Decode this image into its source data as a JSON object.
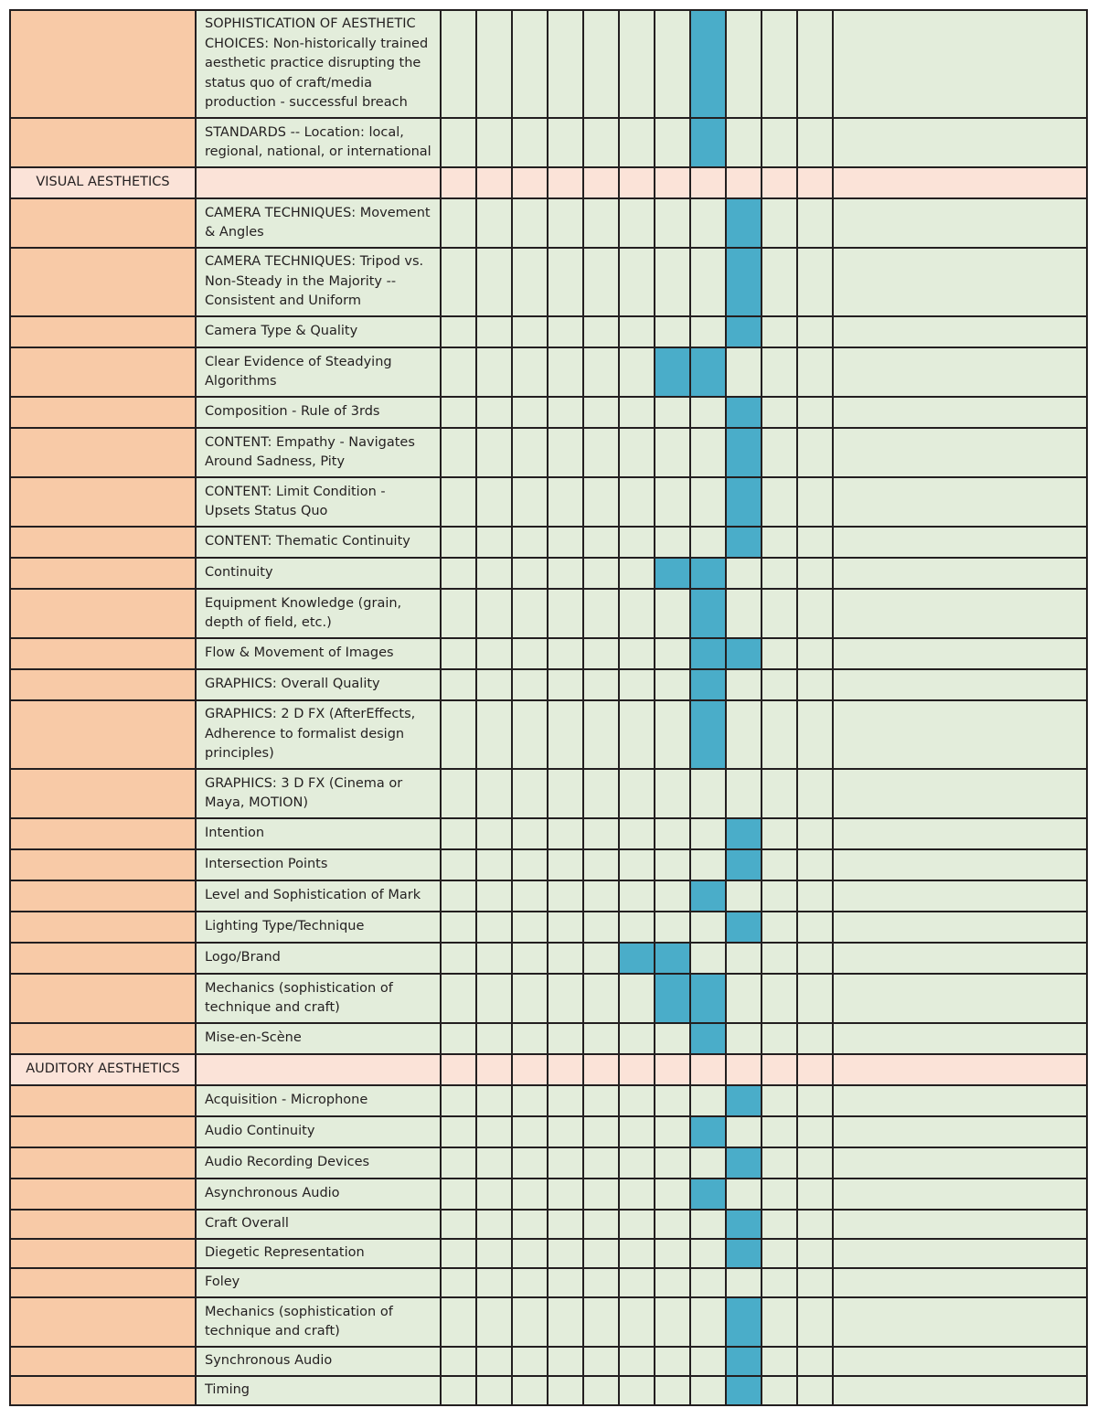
{
  "colors": {
    "category_bg": "#f8caa7",
    "section_bg": "#fbe3d8",
    "cell_bg": "#e3eddb",
    "marked_bg": "#4aadc9",
    "grid_line": "#231f20"
  },
  "scale_columns": 11,
  "rows": [
    {
      "kind": "item",
      "category": "",
      "label": "SOPHISTICATION OF AESTHETIC CHOICES: Non-historically trained aesthetic practice disrupting the status quo of craft/media production - successful breach",
      "marked": [
        7
      ]
    },
    {
      "kind": "item",
      "category": "",
      "label": "STANDARDS -- Location: local, regional, national, or international",
      "marked": [
        7
      ]
    },
    {
      "kind": "section",
      "category": "VISUAL AESTHETICS",
      "label": "",
      "marked": []
    },
    {
      "kind": "item",
      "category": "",
      "label": "CAMERA TECHNIQUES: Movement & Angles",
      "marked": [
        8
      ]
    },
    {
      "kind": "item",
      "category": "",
      "label": "CAMERA TECHNIQUES: Tripod vs. Non-Steady in the Majority -- Consistent and Uniform",
      "marked": [
        8
      ]
    },
    {
      "kind": "item",
      "category": "",
      "label": "Camera Type & Quality",
      "marked": [
        8
      ]
    },
    {
      "kind": "item",
      "category": "",
      "label": "Clear Evidence of Steadying Algorithms",
      "marked": [
        6,
        7
      ]
    },
    {
      "kind": "item",
      "category": "",
      "label": "Composition - Rule of 3rds",
      "marked": [
        8
      ]
    },
    {
      "kind": "item",
      "category": "",
      "label": "CONTENT: Empathy - Navigates Around Sadness, Pity",
      "marked": [
        8
      ]
    },
    {
      "kind": "item",
      "category": "",
      "label": "CONTENT: Limit Condition - Upsets Status Quo",
      "marked": [
        8
      ]
    },
    {
      "kind": "item",
      "category": "",
      "label": "CONTENT: Thematic Continuity",
      "marked": [
        8
      ]
    },
    {
      "kind": "item",
      "category": "",
      "label": "Continuity",
      "marked": [
        6,
        7
      ]
    },
    {
      "kind": "item",
      "category": "",
      "label": "Equipment Knowledge (grain, depth of field, etc.)",
      "marked": [
        7
      ]
    },
    {
      "kind": "item",
      "category": "",
      "label": "Flow & Movement of Images",
      "marked": [
        7,
        8
      ]
    },
    {
      "kind": "item",
      "category": "",
      "label": "GRAPHICS: Overall Quality",
      "marked": [
        7
      ]
    },
    {
      "kind": "item",
      "category": "",
      "label": "GRAPHICS: 2 D FX (AfterEffects, Adherence to formalist design principles)",
      "marked": [
        7
      ]
    },
    {
      "kind": "item",
      "category": "",
      "label": "GRAPHICS: 3 D FX (Cinema or Maya, MOTION)",
      "marked": []
    },
    {
      "kind": "item",
      "category": "",
      "label": "Intention",
      "marked": [
        8
      ]
    },
    {
      "kind": "item",
      "category": "",
      "label": "Intersection Points",
      "marked": [
        8
      ]
    },
    {
      "kind": "item",
      "category": "",
      "label": "Level and Sophistication of Mark",
      "marked": [
        7
      ]
    },
    {
      "kind": "item",
      "category": "",
      "label": "Lighting Type/Technique",
      "marked": [
        8
      ]
    },
    {
      "kind": "item",
      "category": "",
      "label": "Logo/Brand",
      "marked": [
        5,
        6
      ]
    },
    {
      "kind": "item",
      "category": "",
      "label": "Mechanics (sophistication of technique and craft)",
      "marked": [
        6,
        7
      ]
    },
    {
      "kind": "item",
      "category": "",
      "label": "Mise-en-Scène",
      "marked": [
        7
      ]
    },
    {
      "kind": "section",
      "category": "AUDITORY AESTHETICS",
      "label": "",
      "marked": []
    },
    {
      "kind": "item",
      "category": "",
      "label": "Acquisition - Microphone",
      "marked": [
        8
      ]
    },
    {
      "kind": "item",
      "category": "",
      "label": "Audio Continuity",
      "marked": [
        7
      ]
    },
    {
      "kind": "item",
      "category": "",
      "label": "Audio Recording Devices",
      "marked": [
        8
      ]
    },
    {
      "kind": "item",
      "category": "",
      "label": "Asynchronous Audio",
      "marked": [
        7
      ]
    },
    {
      "kind": "item",
      "category": "",
      "label": "Craft Overall",
      "marked": [
        8
      ]
    },
    {
      "kind": "item",
      "category": "",
      "label": "Diegetic Representation",
      "marked": [
        8
      ]
    },
    {
      "kind": "item",
      "category": "",
      "label": "Foley",
      "marked": []
    },
    {
      "kind": "item",
      "category": "",
      "label": "Mechanics (sophistication of technique and craft)",
      "marked": [
        8
      ]
    },
    {
      "kind": "item",
      "category": "",
      "label": "Synchronous Audio",
      "marked": [
        8
      ]
    },
    {
      "kind": "item",
      "category": "",
      "label": "Timing",
      "marked": [
        8
      ]
    }
  ]
}
